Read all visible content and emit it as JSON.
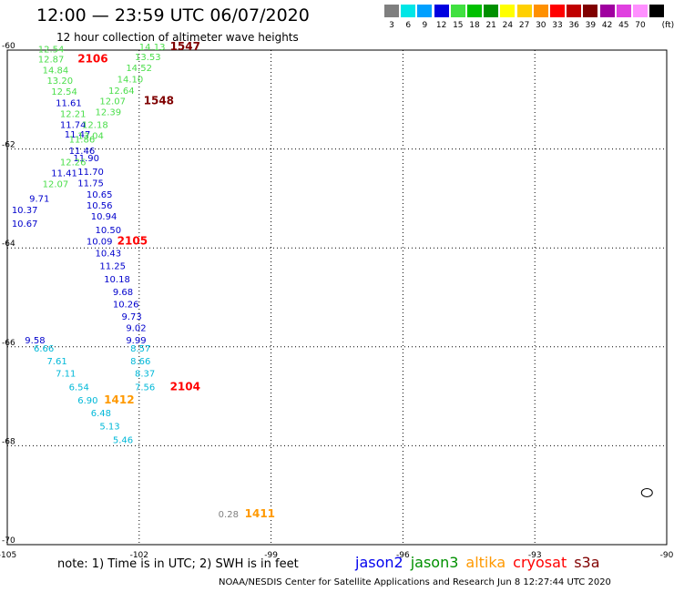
{
  "title": "12:00 — 23:59 UTC 06/07/2020",
  "subtitle": "12 hour collection of altimeter wave heights",
  "legend": {
    "unit": "(ft)",
    "bins": [
      {
        "label": "3",
        "color": "#7f7f7f"
      },
      {
        "label": "6",
        "color": "#00e6e6"
      },
      {
        "label": "9",
        "color": "#00a0ff"
      },
      {
        "label": "12",
        "color": "#0000e0"
      },
      {
        "label": "15",
        "color": "#40e040"
      },
      {
        "label": "18",
        "color": "#00c000"
      },
      {
        "label": "21",
        "color": "#009000"
      },
      {
        "label": "24",
        "color": "#ffff00"
      },
      {
        "label": "27",
        "color": "#ffd000"
      },
      {
        "label": "30",
        "color": "#ff9000"
      },
      {
        "label": "33",
        "color": "#ff0000"
      },
      {
        "label": "36",
        "color": "#c00000"
      },
      {
        "label": "39",
        "color": "#800000"
      },
      {
        "label": "42",
        "color": "#a000a0"
      },
      {
        "label": "45",
        "color": "#e040e0"
      },
      {
        "label": "70",
        "color": "#ff90ff"
      },
      {
        "label": "",
        "color": "#000000"
      }
    ]
  },
  "map": {
    "lon_ticks": [
      "-105",
      "-102",
      "-99",
      "-96",
      "-93",
      "-90"
    ],
    "lat_ticks": [
      "-60",
      "-62",
      "-64",
      "-66",
      "-68",
      "-70"
    ],
    "lon_range": [
      -105,
      -90
    ],
    "lat_range": [
      -60,
      -70
    ]
  },
  "colors": {
    "cyan": "#00b8d8",
    "blue": "#0000cc",
    "green": "#4ade4a",
    "gray": "#808080",
    "red": "#ff0000",
    "darkred": "#800000",
    "orange": "#ff9900"
  },
  "wave_heights": [
    {
      "text": "12.54",
      "color": "green",
      "lon": -104.3,
      "lat": -60.05
    },
    {
      "text": "12.87",
      "color": "green",
      "lon": -104.3,
      "lat": -60.25
    },
    {
      "text": "14.84",
      "color": "green",
      "lon": -104.2,
      "lat": -60.47
    },
    {
      "text": "13.20",
      "color": "green",
      "lon": -104.1,
      "lat": -60.68
    },
    {
      "text": "12.54",
      "color": "green",
      "lon": -104.0,
      "lat": -60.9
    },
    {
      "text": "11.61",
      "color": "blue",
      "lon": -103.9,
      "lat": -61.13
    },
    {
      "text": "12.21",
      "color": "green",
      "lon": -103.8,
      "lat": -61.35
    },
    {
      "text": "11.74",
      "color": "blue",
      "lon": -103.8,
      "lat": -61.57
    },
    {
      "text": "11.47",
      "color": "blue",
      "lon": -103.7,
      "lat": -61.77
    },
    {
      "text": "11.86",
      "color": "green",
      "lon": -103.6,
      "lat": -61.87
    },
    {
      "text": "11.46",
      "color": "blue",
      "lon": -103.6,
      "lat": -62.1
    },
    {
      "text": "11.90",
      "color": "blue",
      "lon": -103.5,
      "lat": -62.25
    },
    {
      "text": "12.26",
      "color": "green",
      "lon": -103.8,
      "lat": -62.33
    },
    {
      "text": "11.41",
      "color": "blue",
      "lon": -104.0,
      "lat": -62.55
    },
    {
      "text": "11.70",
      "color": "blue",
      "lon": -103.4,
      "lat": -62.52
    },
    {
      "text": "12.07",
      "color": "green",
      "lon": -104.2,
      "lat": -62.77
    },
    {
      "text": "11.75",
      "color": "blue",
      "lon": -103.4,
      "lat": -62.75
    },
    {
      "text": "9.71",
      "color": "blue",
      "lon": -104.5,
      "lat": -63.07
    },
    {
      "text": "10.65",
      "color": "blue",
      "lon": -103.2,
      "lat": -62.98
    },
    {
      "text": "10.37",
      "color": "blue",
      "lon": -104.9,
      "lat": -63.3
    },
    {
      "text": "10.56",
      "color": "blue",
      "lon": -103.2,
      "lat": -63.2
    },
    {
      "text": "10.67",
      "color": "blue",
      "lon": -104.9,
      "lat": -63.57
    },
    {
      "text": "10.94",
      "color": "blue",
      "lon": -103.1,
      "lat": -63.43
    },
    {
      "text": "10.50",
      "color": "blue",
      "lon": -103.0,
      "lat": -63.7
    },
    {
      "text": "10.09",
      "color": "blue",
      "lon": -103.2,
      "lat": -63.93
    },
    {
      "text": "10.43",
      "color": "blue",
      "lon": -103.0,
      "lat": -64.17
    },
    {
      "text": "11.25",
      "color": "blue",
      "lon": -102.9,
      "lat": -64.43
    },
    {
      "text": "10.18",
      "color": "blue",
      "lon": -102.8,
      "lat": -64.7
    },
    {
      "text": "9.68",
      "color": "blue",
      "lon": -102.6,
      "lat": -64.95
    },
    {
      "text": "10.26",
      "color": "blue",
      "lon": -102.6,
      "lat": -65.2
    },
    {
      "text": "9.73",
      "color": "blue",
      "lon": -102.4,
      "lat": -65.45
    },
    {
      "text": "9.02",
      "color": "blue",
      "lon": -102.3,
      "lat": -65.68
    },
    {
      "text": "9.99",
      "color": "blue",
      "lon": -102.3,
      "lat": -65.93
    },
    {
      "text": "9.58",
      "color": "blue",
      "lon": -104.6,
      "lat": -65.93
    },
    {
      "text": "8.57",
      "color": "cyan",
      "lon": -102.2,
      "lat": -66.1
    },
    {
      "text": "6.66",
      "color": "cyan",
      "lon": -104.4,
      "lat": -66.1
    },
    {
      "text": "8.66",
      "color": "cyan",
      "lon": -102.2,
      "lat": -66.35
    },
    {
      "text": "7.61",
      "color": "cyan",
      "lon": -104.1,
      "lat": -66.35
    },
    {
      "text": "8.37",
      "color": "cyan",
      "lon": -102.1,
      "lat": -66.6
    },
    {
      "text": "7.11",
      "color": "cyan",
      "lon": -103.9,
      "lat": -66.6
    },
    {
      "text": "7.56",
      "color": "cyan",
      "lon": -102.1,
      "lat": -66.88
    },
    {
      "text": "6.54",
      "color": "cyan",
      "lon": -103.6,
      "lat": -66.88
    },
    {
      "text": "6.90",
      "color": "cyan",
      "lon": -103.4,
      "lat": -67.15
    },
    {
      "text": "6.48",
      "color": "cyan",
      "lon": -103.1,
      "lat": -67.4
    },
    {
      "text": "5.13",
      "color": "cyan",
      "lon": -102.9,
      "lat": -67.67
    },
    {
      "text": "5.46",
      "color": "cyan",
      "lon": -102.6,
      "lat": -67.95
    },
    {
      "text": "14.13",
      "color": "green",
      "lon": -102.0,
      "lat": -60.0
    },
    {
      "text": "13.53",
      "color": "green",
      "lon": -102.1,
      "lat": -60.2
    },
    {
      "text": "14.52",
      "color": "green",
      "lon": -102.3,
      "lat": -60.42
    },
    {
      "text": "14.10",
      "color": "green",
      "lon": -102.5,
      "lat": -60.65
    },
    {
      "text": "12.64",
      "color": "green",
      "lon": -102.7,
      "lat": -60.88
    },
    {
      "text": "12.07",
      "color": "green",
      "lon": -102.9,
      "lat": -61.1
    },
    {
      "text": "12.39",
      "color": "green",
      "lon": -103.0,
      "lat": -61.32
    },
    {
      "text": "12.18",
      "color": "green",
      "lon": -103.3,
      "lat": -61.57
    },
    {
      "text": "13.04",
      "color": "green",
      "lon": -103.4,
      "lat": -61.8
    },
    {
      "text": "0.28",
      "color": "gray",
      "lon": -100.2,
      "lat": -69.45
    }
  ],
  "pass_times": [
    {
      "text": "1547",
      "color": "darkred",
      "lon": -101.3,
      "lat": -60.0
    },
    {
      "text": "2106",
      "color": "red",
      "lon": -103.4,
      "lat": -60.25
    },
    {
      "text": "1548",
      "color": "darkred",
      "lon": -101.9,
      "lat": -61.1
    },
    {
      "text": "2105",
      "color": "red",
      "lon": -102.5,
      "lat": -63.93
    },
    {
      "text": "2104",
      "color": "red",
      "lon": -101.3,
      "lat": -66.88
    },
    {
      "text": "1412",
      "color": "orange",
      "lon": -102.8,
      "lat": -67.15
    },
    {
      "text": "1411",
      "color": "orange",
      "lon": -99.6,
      "lat": -69.45
    }
  ],
  "note": "note:  1) Time is in UTC; 2) SWH is in feet",
  "satellites": [
    {
      "name": "jason2",
      "color": "#0000ee"
    },
    {
      "name": "jason3",
      "color": "#009000"
    },
    {
      "name": "altika",
      "color": "#ff9900"
    },
    {
      "name": "cryosat",
      "color": "#ff0000"
    },
    {
      "name": "s3a",
      "color": "#800000"
    }
  ],
  "footer": "NOAA/NESDIS Center for Satellite Applications and Research    Jun  8 12:27:44 UTC 2020"
}
